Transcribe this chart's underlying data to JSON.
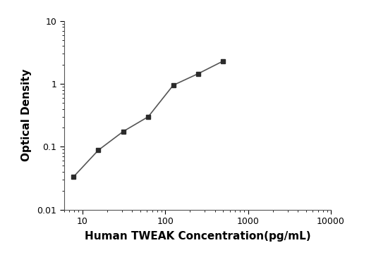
{
  "x": [
    7.8,
    15.6,
    31.2,
    62.5,
    125,
    250,
    500
  ],
  "y": [
    0.033,
    0.088,
    0.175,
    0.3,
    0.95,
    1.45,
    2.3
  ],
  "xlabel": "Human TWEAK Concentration(pg/mL)",
  "ylabel": "Optical Density",
  "xlim": [
    6,
    10000
  ],
  "ylim": [
    0.01,
    10
  ],
  "xticks": [
    10,
    100,
    1000,
    10000
  ],
  "yticks": [
    0.01,
    0.1,
    1,
    10
  ],
  "marker": "s",
  "marker_color": "#2b2b2b",
  "line_color": "#555555",
  "marker_size": 5,
  "line_width": 1.2,
  "background_color": "#ffffff",
  "xlabel_fontsize": 11,
  "ylabel_fontsize": 11,
  "tick_fontsize": 9
}
